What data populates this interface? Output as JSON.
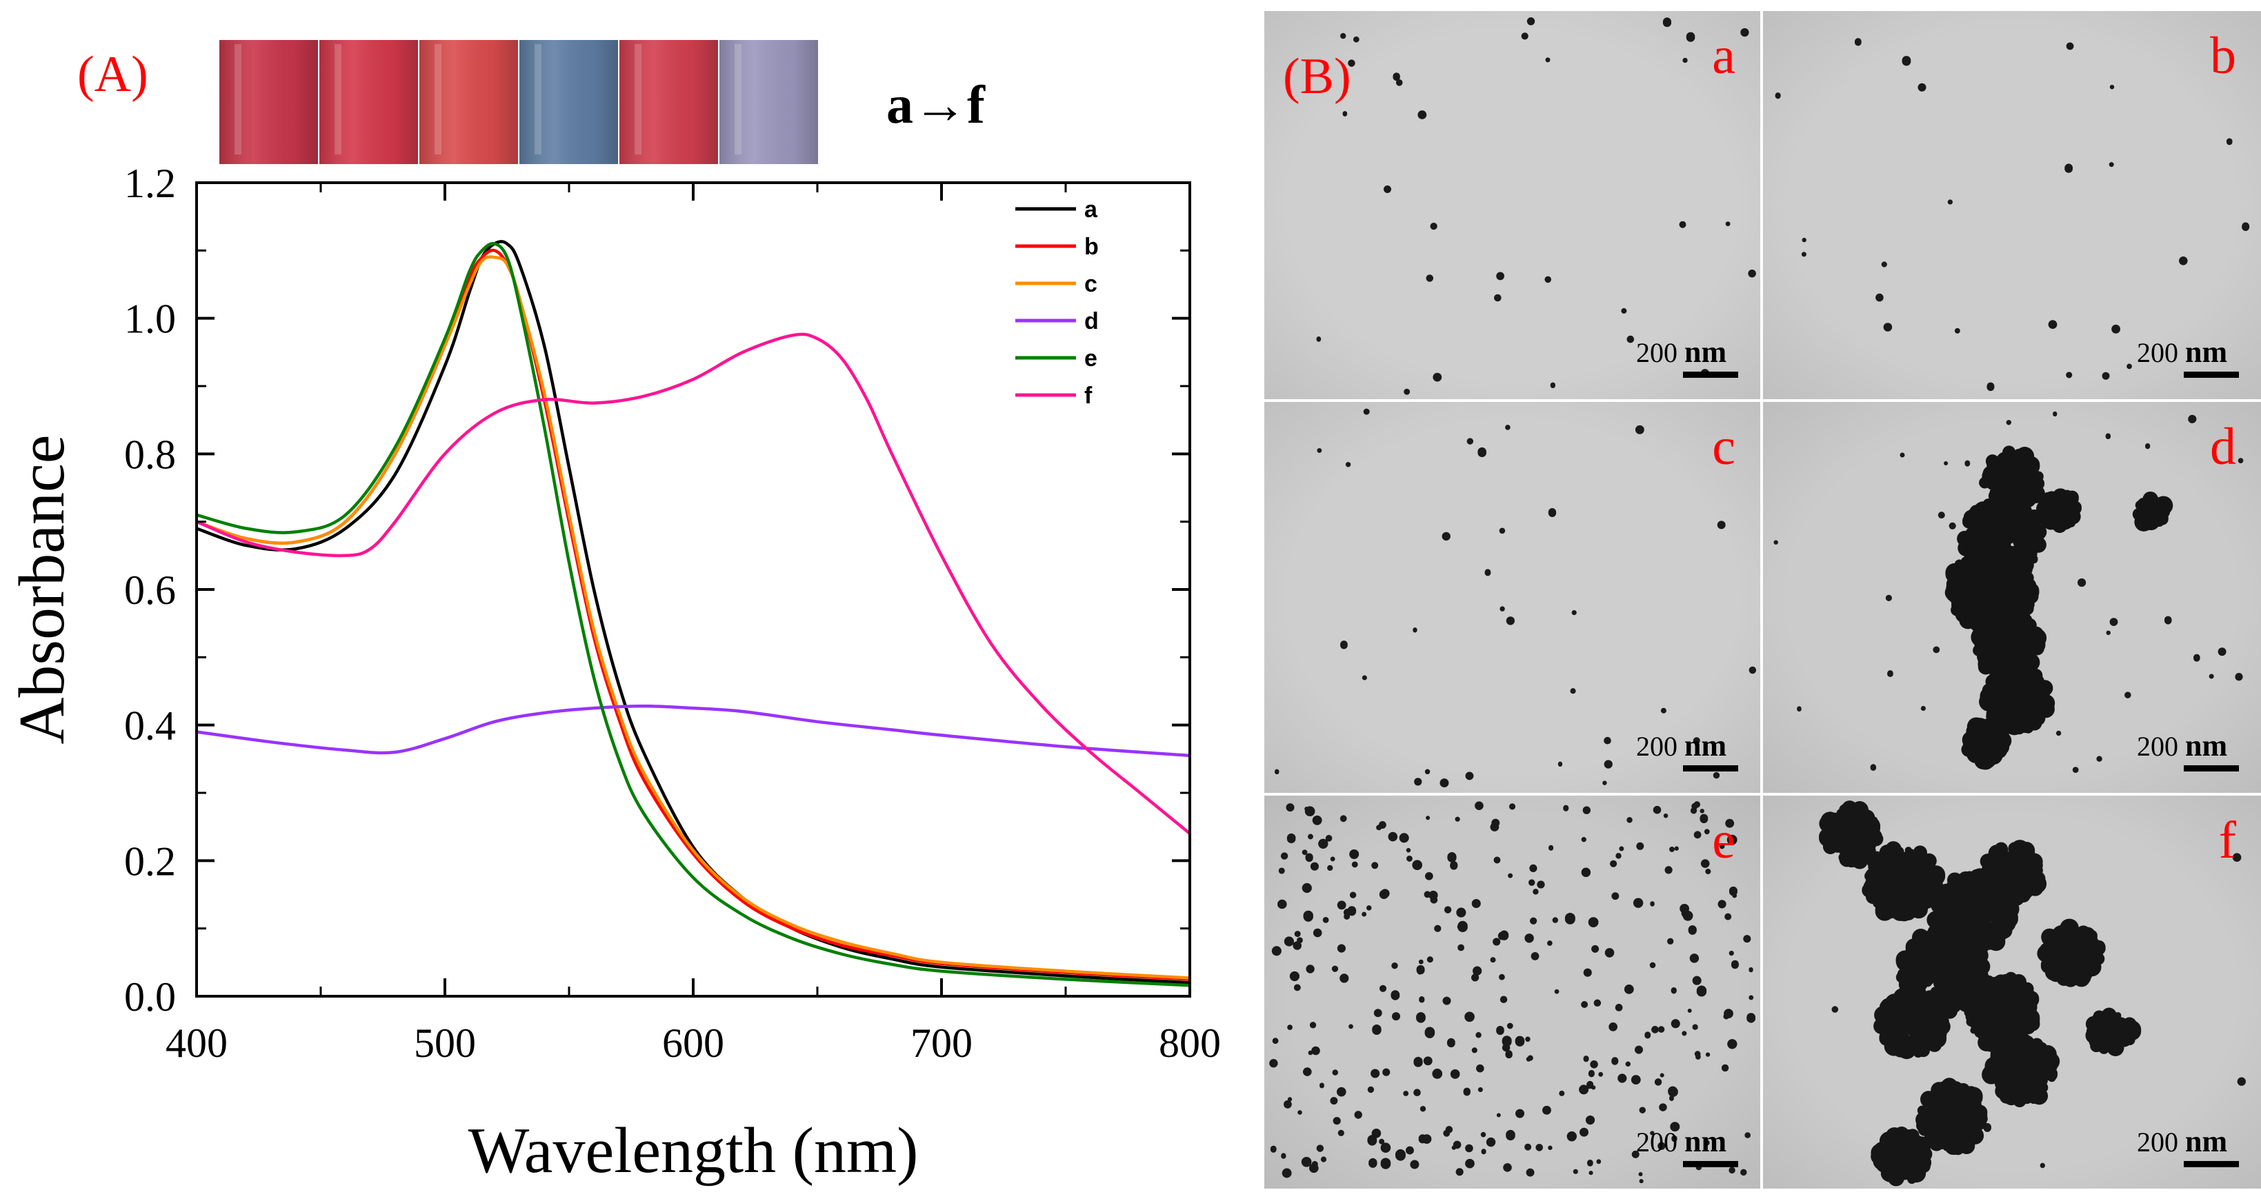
{
  "panel_a": {
    "label": "(A)",
    "label_color": "#ff0000",
    "sequence_label": "a→f",
    "vials": [
      {
        "id": "a",
        "color": "#c9364a"
      },
      {
        "id": "b",
        "color": "#d5384b"
      },
      {
        "id": "c",
        "color": "#db4b4d"
      },
      {
        "id": "d",
        "color": "#5f7ea4"
      },
      {
        "id": "e",
        "color": "#d33e4f"
      },
      {
        "id": "f",
        "color": "#9c97be"
      }
    ]
  },
  "chart_data": {
    "type": "line",
    "title": "",
    "xlabel": "Wavelength (nm)",
    "ylabel": "Absorbance",
    "xlim": [
      400,
      800
    ],
    "ylim": [
      0.0,
      1.2
    ],
    "xticks": [
      400,
      500,
      600,
      700,
      800
    ],
    "xtick_labels": [
      "400",
      "500",
      "600",
      "700",
      "800"
    ],
    "yticks": [
      0.0,
      0.2,
      0.4,
      0.6,
      0.8,
      1.0,
      1.2
    ],
    "ytick_labels": [
      "0.0",
      "0.2",
      "0.4",
      "0.6",
      "0.8",
      "1.0",
      "1.2"
    ],
    "grid": false,
    "legend_position": "top-right",
    "series": [
      {
        "name": "a",
        "color": "#000000",
        "points": [
          [
            400,
            0.69
          ],
          [
            420,
            0.665
          ],
          [
            440,
            0.66
          ],
          [
            460,
            0.69
          ],
          [
            480,
            0.77
          ],
          [
            500,
            0.93
          ],
          [
            510,
            1.04
          ],
          [
            515,
            1.09
          ],
          [
            520,
            1.11
          ],
          [
            525,
            1.11
          ],
          [
            530,
            1.08
          ],
          [
            540,
            0.96
          ],
          [
            550,
            0.78
          ],
          [
            560,
            0.6
          ],
          [
            570,
            0.46
          ],
          [
            580,
            0.36
          ],
          [
            600,
            0.22
          ],
          [
            620,
            0.145
          ],
          [
            640,
            0.1
          ],
          [
            660,
            0.072
          ],
          [
            680,
            0.055
          ],
          [
            700,
            0.043
          ],
          [
            750,
            0.03
          ],
          [
            800,
            0.02
          ]
        ]
      },
      {
        "name": "b",
        "color": "#ff0000",
        "points": [
          [
            400,
            0.7
          ],
          [
            420,
            0.675
          ],
          [
            440,
            0.67
          ],
          [
            460,
            0.7
          ],
          [
            480,
            0.8
          ],
          [
            500,
            0.96
          ],
          [
            510,
            1.06
          ],
          [
            515,
            1.09
          ],
          [
            520,
            1.1
          ],
          [
            525,
            1.08
          ],
          [
            530,
            1.03
          ],
          [
            540,
            0.88
          ],
          [
            550,
            0.7
          ],
          [
            560,
            0.53
          ],
          [
            570,
            0.41
          ],
          [
            580,
            0.32
          ],
          [
            600,
            0.21
          ],
          [
            620,
            0.14
          ],
          [
            640,
            0.1
          ],
          [
            660,
            0.075
          ],
          [
            680,
            0.06
          ],
          [
            700,
            0.048
          ],
          [
            750,
            0.035
          ],
          [
            800,
            0.025
          ]
        ]
      },
      {
        "name": "c",
        "color": "#ff8c00",
        "points": [
          [
            400,
            0.7
          ],
          [
            420,
            0.675
          ],
          [
            440,
            0.67
          ],
          [
            460,
            0.7
          ],
          [
            480,
            0.8
          ],
          [
            500,
            0.96
          ],
          [
            510,
            1.05
          ],
          [
            515,
            1.085
          ],
          [
            520,
            1.09
          ],
          [
            525,
            1.08
          ],
          [
            530,
            1.03
          ],
          [
            540,
            0.89
          ],
          [
            550,
            0.71
          ],
          [
            560,
            0.54
          ],
          [
            570,
            0.42
          ],
          [
            580,
            0.33
          ],
          [
            600,
            0.215
          ],
          [
            620,
            0.145
          ],
          [
            640,
            0.105
          ],
          [
            660,
            0.08
          ],
          [
            680,
            0.063
          ],
          [
            700,
            0.05
          ],
          [
            750,
            0.037
          ],
          [
            800,
            0.027
          ]
        ]
      },
      {
        "name": "d",
        "color": "#9933ff",
        "points": [
          [
            400,
            0.39
          ],
          [
            430,
            0.375
          ],
          [
            460,
            0.363
          ],
          [
            480,
            0.36
          ],
          [
            500,
            0.38
          ],
          [
            520,
            0.405
          ],
          [
            540,
            0.418
          ],
          [
            560,
            0.425
          ],
          [
            580,
            0.428
          ],
          [
            600,
            0.425
          ],
          [
            620,
            0.42
          ],
          [
            650,
            0.405
          ],
          [
            680,
            0.393
          ],
          [
            700,
            0.385
          ],
          [
            750,
            0.368
          ],
          [
            800,
            0.355
          ]
        ]
      },
      {
        "name": "e",
        "color": "#008000",
        "points": [
          [
            400,
            0.71
          ],
          [
            420,
            0.69
          ],
          [
            440,
            0.685
          ],
          [
            460,
            0.71
          ],
          [
            480,
            0.81
          ],
          [
            500,
            0.97
          ],
          [
            510,
            1.07
          ],
          [
            515,
            1.1
          ],
          [
            520,
            1.11
          ],
          [
            525,
            1.09
          ],
          [
            530,
            1.02
          ],
          [
            540,
            0.84
          ],
          [
            550,
            0.64
          ],
          [
            560,
            0.47
          ],
          [
            570,
            0.35
          ],
          [
            580,
            0.27
          ],
          [
            600,
            0.175
          ],
          [
            620,
            0.12
          ],
          [
            640,
            0.085
          ],
          [
            660,
            0.062
          ],
          [
            680,
            0.047
          ],
          [
            700,
            0.037
          ],
          [
            750,
            0.025
          ],
          [
            800,
            0.016
          ]
        ]
      },
      {
        "name": "f",
        "color": "#ff1493",
        "points": [
          [
            400,
            0.7
          ],
          [
            420,
            0.67
          ],
          [
            440,
            0.655
          ],
          [
            460,
            0.65
          ],
          [
            470,
            0.66
          ],
          [
            480,
            0.7
          ],
          [
            500,
            0.8
          ],
          [
            520,
            0.86
          ],
          [
            540,
            0.88
          ],
          [
            560,
            0.875
          ],
          [
            580,
            0.885
          ],
          [
            600,
            0.91
          ],
          [
            620,
            0.95
          ],
          [
            640,
            0.975
          ],
          [
            650,
            0.97
          ],
          [
            660,
            0.94
          ],
          [
            670,
            0.88
          ],
          [
            680,
            0.8
          ],
          [
            700,
            0.65
          ],
          [
            720,
            0.52
          ],
          [
            740,
            0.43
          ],
          [
            760,
            0.36
          ],
          [
            780,
            0.3
          ],
          [
            800,
            0.24
          ]
        ]
      }
    ]
  },
  "panel_b": {
    "label": "(B)",
    "label_color": "#ff0000",
    "scale_bar_text": "200",
    "scale_bar_unit": "nm",
    "panels": [
      {
        "label": "a",
        "background": "#cfcfcf"
      },
      {
        "label": "b",
        "background": "#cdcdcd"
      },
      {
        "label": "c",
        "background": "#cecece"
      },
      {
        "label": "d",
        "background": "#cbcbcb"
      },
      {
        "label": "e",
        "background": "#c8c8c8"
      },
      {
        "label": "f",
        "background": "#cbcbcb"
      }
    ]
  }
}
